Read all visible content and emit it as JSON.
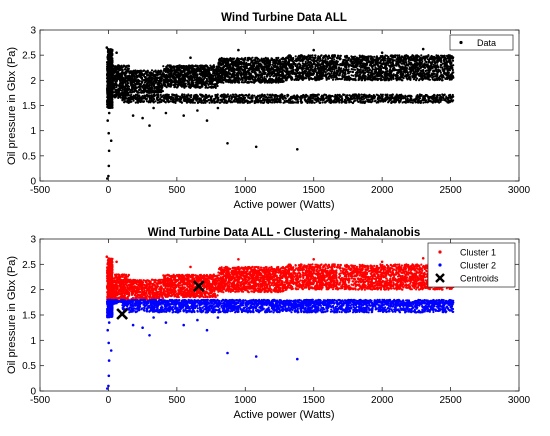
{
  "chart_data": [
    {
      "type": "scatter",
      "title": "Wind Turbine Data ALL",
      "xlabel": "Active power (Watts)",
      "ylabel": "Oil pressure in Gbx (Pa)",
      "xlim": [
        -500,
        3000
      ],
      "ylim": [
        0,
        3
      ],
      "xticks": [
        -500,
        0,
        500,
        1000,
        1500,
        2000,
        2500,
        3000
      ],
      "yticks": [
        0,
        0.5,
        1,
        1.5,
        2,
        2.5,
        3
      ],
      "xtick_labels": [
        "-500",
        "0",
        "500",
        "1000",
        "1500",
        "2000",
        "2500",
        "3000"
      ],
      "ytick_labels": [
        "0",
        "0.5",
        "1",
        "1.5",
        "2",
        "2.5",
        "3"
      ],
      "grid": false,
      "legend_position": "top-right",
      "series": [
        {
          "name": "Data",
          "color": "#000000",
          "bands": [
            {
              "x": [
                -10,
                30
              ],
              "y": [
                1.45,
                2.62
              ],
              "n": 700
            },
            {
              "x": [
                30,
                150
              ],
              "y": [
                1.65,
                2.3
              ],
              "n": 380
            },
            {
              "x": [
                150,
                400
              ],
              "y": [
                1.75,
                2.2
              ],
              "n": 500
            },
            {
              "x": [
                400,
                800
              ],
              "y": [
                1.85,
                2.3
              ],
              "n": 850
            },
            {
              "x": [
                800,
                1300
              ],
              "y": [
                1.95,
                2.45
              ],
              "n": 1100
            },
            {
              "x": [
                1300,
                2520
              ],
              "y": [
                2.0,
                2.5
              ],
              "n": 2200
            },
            {
              "x": [
                100,
                2520
              ],
              "y": [
                1.55,
                1.72
              ],
              "n": 1500
            }
          ],
          "points": [
            [
              -8,
              0.05
            ],
            [
              0,
              0.1
            ],
            [
              3,
              0.3
            ],
            [
              5,
              0.6
            ],
            [
              2,
              0.95
            ],
            [
              -5,
              1.2
            ],
            [
              6,
              1.35
            ],
            [
              -12,
              2.65
            ],
            [
              60,
              2.55
            ],
            [
              20,
              0.8
            ],
            [
              250,
              1.25
            ],
            [
              300,
              1.1
            ],
            [
              420,
              1.35
            ],
            [
              180,
              1.3
            ],
            [
              550,
              1.3
            ],
            [
              650,
              1.4
            ],
            [
              870,
              0.75
            ],
            [
              1080,
              0.68
            ],
            [
              1380,
              0.63
            ],
            [
              720,
              1.2
            ],
            [
              950,
              2.6
            ],
            [
              1500,
              2.6
            ],
            [
              2300,
              2.62
            ],
            [
              600,
              2.45
            ],
            [
              800,
              1.45
            ],
            [
              2000,
              2.55
            ],
            [
              330,
              1.45
            ]
          ]
        }
      ]
    },
    {
      "type": "scatter",
      "title": "Wind Turbine Data ALL - Clustering - Mahalanobis",
      "xlabel": "Active power (Watts)",
      "ylabel": "Oil pressure in Gbx (Pa)",
      "xlim": [
        -500,
        3000
      ],
      "ylim": [
        0,
        3
      ],
      "xticks": [
        -500,
        0,
        500,
        1000,
        1500,
        2000,
        2500,
        3000
      ],
      "yticks": [
        0,
        0.5,
        1,
        1.5,
        2,
        2.5,
        3
      ],
      "xtick_labels": [
        "-500",
        "0",
        "500",
        "1000",
        "1500",
        "2000",
        "2500",
        "3000"
      ],
      "ytick_labels": [
        "0",
        "0.5",
        "1",
        "1.5",
        "2",
        "2.5",
        "3"
      ],
      "grid": false,
      "legend_position": "top-right",
      "series": [
        {
          "name": "Cluster 1",
          "color": "#ff0000",
          "bands": [
            {
              "x": [
                -10,
                30
              ],
              "y": [
                1.8,
                2.62
              ],
              "n": 450
            },
            {
              "x": [
                30,
                150
              ],
              "y": [
                1.8,
                2.3
              ],
              "n": 320
            },
            {
              "x": [
                150,
                400
              ],
              "y": [
                1.8,
                2.2
              ],
              "n": 450
            },
            {
              "x": [
                400,
                800
              ],
              "y": [
                1.85,
                2.3
              ],
              "n": 850
            },
            {
              "x": [
                800,
                1300
              ],
              "y": [
                1.95,
                2.45
              ],
              "n": 1100
            },
            {
              "x": [
                1300,
                2520
              ],
              "y": [
                2.0,
                2.5
              ],
              "n": 2200
            }
          ],
          "points": [
            [
              -12,
              2.65
            ],
            [
              60,
              2.55
            ],
            [
              950,
              2.6
            ],
            [
              1500,
              2.6
            ],
            [
              2300,
              2.62
            ],
            [
              600,
              2.45
            ],
            [
              2000,
              2.55
            ]
          ]
        },
        {
          "name": "Cluster 2",
          "color": "#0000ff",
          "bands": [
            {
              "x": [
                -10,
                30
              ],
              "y": [
                1.45,
                1.8
              ],
              "n": 250
            },
            {
              "x": [
                -10,
                2520
              ],
              "y": [
                1.72,
                1.8
              ],
              "n": 1300
            },
            {
              "x": [
                100,
                2520
              ],
              "y": [
                1.55,
                1.72
              ],
              "n": 1500
            }
          ],
          "points": [
            [
              -8,
              0.05
            ],
            [
              0,
              0.1
            ],
            [
              3,
              0.3
            ],
            [
              5,
              0.6
            ],
            [
              2,
              0.95
            ],
            [
              -5,
              1.2
            ],
            [
              6,
              1.35
            ],
            [
              20,
              0.8
            ],
            [
              250,
              1.25
            ],
            [
              300,
              1.1
            ],
            [
              420,
              1.35
            ],
            [
              180,
              1.3
            ],
            [
              550,
              1.3
            ],
            [
              650,
              1.4
            ],
            [
              870,
              0.75
            ],
            [
              1080,
              0.68
            ],
            [
              1380,
              0.63
            ],
            [
              720,
              1.2
            ],
            [
              800,
              1.45
            ],
            [
              330,
              1.45
            ]
          ]
        },
        {
          "name": "Centroids",
          "color": "#000000",
          "marker": "x",
          "points": [
            [
              100,
              1.52
            ],
            [
              660,
              2.07
            ]
          ]
        }
      ]
    }
  ]
}
